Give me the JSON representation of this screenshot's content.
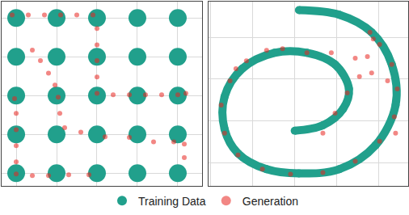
{
  "chart_data": [
    {
      "type": "scatter",
      "grid": true,
      "tick_labels": false,
      "legend": "bottom",
      "xlim": [
        -2.36,
        2.6
      ],
      "ylim": [
        -2.33,
        2.42
      ],
      "xticks": [
        -2,
        -1,
        0,
        1,
        2
      ],
      "yticks": [
        -2,
        -1,
        0,
        1,
        2
      ],
      "series": [
        {
          "name": "Training Data",
          "color": "#21a08c",
          "marker": "circle",
          "x": [
            -2,
            -1,
            0,
            1,
            2,
            -2,
            -1,
            0,
            1,
            2,
            -2,
            -1,
            0,
            1,
            2,
            -2,
            -1,
            0,
            1,
            2,
            -2,
            -1,
            0,
            1,
            2
          ],
          "y": [
            2,
            2,
            2,
            2,
            2,
            1,
            1,
            1,
            1,
            1,
            0,
            0,
            0,
            0,
            0,
            -1,
            -1,
            -1,
            -1,
            -1,
            -2,
            -2,
            -2,
            -2,
            -2
          ]
        },
        {
          "name": "Generation",
          "color": "#e8251f",
          "marker": "circle",
          "x": [
            -2.1,
            -1.7,
            -1.3,
            -0.9,
            -0.5,
            -0.1,
            0,
            0,
            0,
            0,
            0,
            0.4,
            0.8,
            1.2,
            1.6,
            2.0,
            2.2,
            -1.6,
            -1.4,
            -1.2,
            -1.04,
            -0.96,
            -0.92,
            -0.8,
            -0.4,
            0.2,
            0.8,
            1.4,
            1.9,
            2.16,
            2.16,
            -2.04,
            -2,
            -2,
            -2,
            -2,
            -2,
            -1.6,
            -1.2,
            -0.7,
            -0.2
          ],
          "y": [
            2.08,
            2.08,
            2.08,
            2.08,
            2.08,
            2.08,
            1.73,
            1.31,
            0.9,
            0.48,
            0.06,
            0.02,
            0.02,
            0.02,
            0.02,
            0.02,
            0.06,
            1.17,
            0.9,
            0.58,
            0.27,
            -0.04,
            -0.46,
            -0.83,
            -0.94,
            -1.06,
            -1.08,
            -1.19,
            -1.19,
            -1.25,
            -1.6,
            -0.08,
            -0.46,
            -0.88,
            -1.29,
            -1.71,
            -2.02,
            -2.06,
            -2.06,
            -2.04,
            -2.04
          ]
        }
      ]
    },
    {
      "type": "scatter",
      "grid": true,
      "tick_labels": false,
      "legend": "bottom",
      "xlim": [
        -2.05,
        2.7
      ],
      "ylim": [
        -1.55,
        2.85
      ],
      "xticks": [
        -2,
        -1,
        0,
        1,
        2
      ],
      "yticks": [
        -1,
        0,
        1,
        2
      ],
      "series": [
        {
          "name": "Training Data",
          "color": "#21a08c",
          "type": "line",
          "marker": "circle",
          "x": [
            0,
            0.67,
            1.15,
            1.29,
            0.96,
            0.29,
            -0.48,
            -1.25,
            -1.67,
            -1.67,
            -1.35,
            -0.67,
            0.1,
            1.06,
            1.92,
            2.4,
            2.31,
            1.83,
            1.06,
            0.1
          ],
          "y": [
            -0.23,
            -0.1,
            0.29,
            0.77,
            1.35,
            1.63,
            1.63,
            1.25,
            0.58,
            -0.19,
            -0.77,
            -1.15,
            -1.25,
            -1.15,
            -0.58,
            0.38,
            1.35,
            2.12,
            2.54,
            2.65
          ]
        },
        {
          "name": "Generation",
          "color": "#e8251f",
          "marker": "circle",
          "x": [
            -0.67,
            -1.15,
            -1.54,
            -1.75,
            -1.67,
            -1.35,
            -0.77,
            -0.1,
            0.67,
            1.44,
            2.02,
            2.37,
            2.44,
            2.31,
            2.02,
            1.79,
            1.87,
            1.73,
            1.54,
            1.25,
            0.96,
            0.67,
            0.29,
            0.87,
            1.44,
            1.83,
            2.21,
            -0.29,
            -1.4,
            2.4
          ],
          "y": [
            1.69,
            1.44,
            0.96,
            0.38,
            -0.29,
            -0.81,
            -1.15,
            -1.27,
            -1.23,
            -0.96,
            -0.48,
            0.1,
            0.77,
            1.35,
            1.83,
            2.12,
            1.96,
            1.54,
            1.06,
            0.67,
            0.19,
            -0.29,
            1.63,
            1.63,
            1.5,
            1.15,
            0.96,
            1.73,
            1.25,
            -0.29
          ]
        }
      ]
    }
  ]
}
